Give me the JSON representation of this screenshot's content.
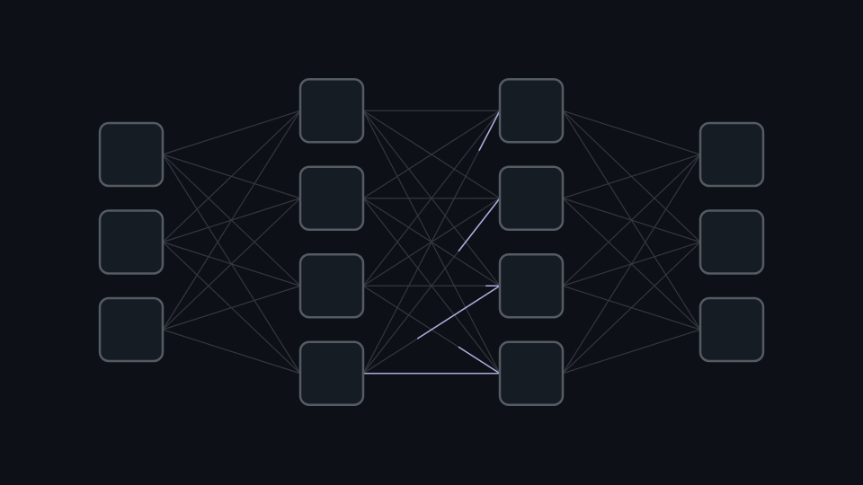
{
  "colors": {
    "background": "#0d1016",
    "node_fill": "#161c23",
    "node_stroke": "#545b62",
    "edge": "#34383d",
    "edge_highlight": "#a9addb"
  },
  "network": {
    "layers": [
      {
        "id": "input",
        "node_count": 3
      },
      {
        "id": "hidden-1",
        "node_count": 4
      },
      {
        "id": "hidden-2",
        "node_count": 4
      },
      {
        "id": "output",
        "node_count": 3
      }
    ],
    "highlighted_edges": [
      {
        "from": [
          1,
          3
        ],
        "to": [
          2,
          3
        ],
        "progress": 1.0
      },
      {
        "from": [
          1,
          2
        ],
        "to": [
          2,
          3
        ],
        "progress": 0.3
      },
      {
        "from": [
          1,
          3
        ],
        "to": [
          2,
          2
        ],
        "progress": 0.6
      },
      {
        "from": [
          1,
          3
        ],
        "to": [
          2,
          1
        ],
        "progress": 0.3
      },
      {
        "from": [
          1,
          2
        ],
        "to": [
          2,
          2
        ],
        "progress": 0.1
      },
      {
        "from": [
          1,
          3
        ],
        "to": [
          2,
          0
        ],
        "progress": 0.15
      }
    ]
  }
}
